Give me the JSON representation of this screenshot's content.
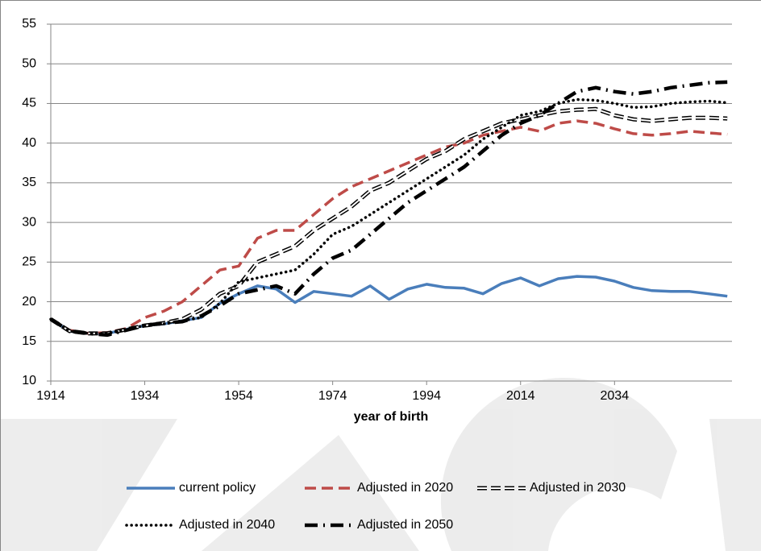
{
  "chart_data": {
    "type": "line",
    "x_label": "year of birth",
    "x": [
      1914,
      1918,
      1922,
      1926,
      1930,
      1934,
      1938,
      1942,
      1946,
      1950,
      1954,
      1958,
      1962,
      1966,
      1970,
      1974,
      1978,
      1982,
      1986,
      1990,
      1994,
      1998,
      2002,
      2006,
      2010,
      2014,
      2018,
      2022,
      2026,
      2030,
      2034,
      2038,
      2042,
      2046,
      2050,
      2054,
      2058
    ],
    "xlim": [
      1914,
      2059
    ],
    "xticks": [
      1914,
      1934,
      1954,
      1974,
      1994,
      2014,
      2034
    ],
    "ylim": [
      10,
      55
    ],
    "yticks": [
      10,
      15,
      20,
      25,
      30,
      35,
      40,
      45,
      50,
      55
    ],
    "grid": true,
    "series": [
      {
        "name": "current policy",
        "color": "#4a7ebb",
        "style": "solid",
        "values": [
          17.8,
          16.3,
          16.0,
          16.0,
          16.5,
          17.0,
          17.2,
          17.6,
          18.0,
          19.8,
          21.0,
          22.0,
          21.6,
          19.9,
          21.3,
          21.0,
          20.7,
          22.0,
          20.3,
          21.6,
          22.2,
          21.8,
          21.7,
          21.0,
          22.3,
          23.0,
          22.0,
          22.9,
          23.2,
          23.1,
          22.6,
          21.8,
          21.4,
          21.3,
          21.3,
          21.0,
          20.7
        ]
      },
      {
        "name": "Adjusted in 2020",
        "color": "#be4b48",
        "style": "dashed",
        "values": [
          17.8,
          16.4,
          16.0,
          16.1,
          16.6,
          18.0,
          18.8,
          20.0,
          22.0,
          24.0,
          24.5,
          28.0,
          29.0,
          29.0,
          31.0,
          33.0,
          34.5,
          35.5,
          36.5,
          37.5,
          38.5,
          39.5,
          40.0,
          41.0,
          41.5,
          42.0,
          41.5,
          42.5,
          42.8,
          42.5,
          41.8,
          41.2,
          41.0,
          41.2,
          41.5,
          41.3,
          41.1
        ]
      },
      {
        "name": "Adjusted in 2030",
        "color": "#000000",
        "style": "hollow-dashed",
        "values": [
          17.8,
          16.3,
          16.0,
          16.0,
          16.5,
          17.0,
          17.3,
          17.8,
          19.0,
          21.0,
          22.0,
          25.0,
          26.0,
          27.0,
          29.0,
          30.5,
          32.0,
          34.0,
          35.0,
          36.5,
          38.0,
          39.0,
          40.5,
          41.5,
          42.5,
          43.0,
          43.5,
          44.0,
          44.2,
          44.3,
          43.5,
          43.0,
          42.8,
          43.0,
          43.2,
          43.2,
          43.1
        ]
      },
      {
        "name": "Adjusted in 2040",
        "color": "#000000",
        "style": "dotted",
        "values": [
          17.8,
          16.3,
          16.0,
          16.0,
          16.5,
          17.0,
          17.2,
          17.6,
          18.0,
          19.8,
          22.5,
          23.0,
          23.5,
          24.0,
          26.0,
          28.5,
          29.5,
          31.0,
          32.5,
          34.0,
          35.5,
          37.0,
          38.5,
          40.5,
          42.0,
          43.5,
          44.0,
          45.0,
          45.5,
          45.4,
          45.0,
          44.5,
          44.6,
          45.0,
          45.2,
          45.3,
          45.1
        ]
      },
      {
        "name": "Adjusted in 2050",
        "color": "#000000",
        "style": "dash-dot",
        "values": [
          17.8,
          16.3,
          16.0,
          15.8,
          16.4,
          17.0,
          17.3,
          17.5,
          18.2,
          19.5,
          21.0,
          21.5,
          22.0,
          21.0,
          23.5,
          25.5,
          26.5,
          28.5,
          30.5,
          32.5,
          34.0,
          35.5,
          37.0,
          39.0,
          41.0,
          42.5,
          43.5,
          45.0,
          46.5,
          47.0,
          46.5,
          46.2,
          46.5,
          47.0,
          47.3,
          47.6,
          47.7
        ]
      }
    ]
  }
}
